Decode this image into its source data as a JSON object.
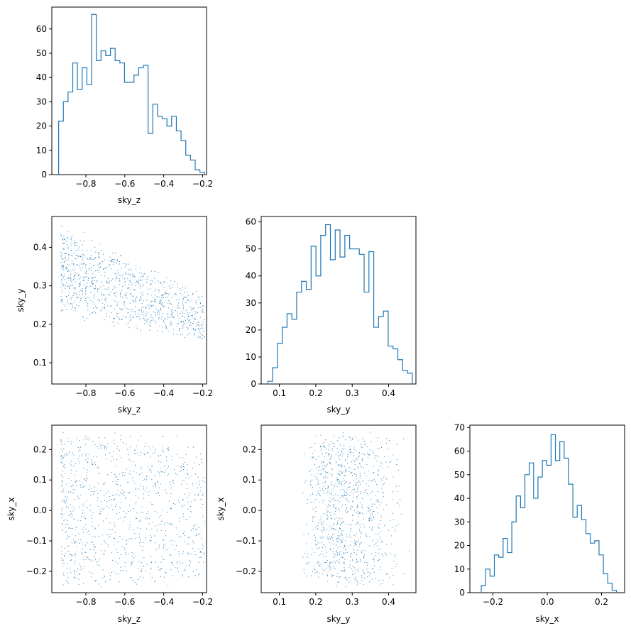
{
  "chart_data": [
    {
      "id": "hist-sky_z",
      "type": "histogram",
      "xlabel": "sky_z",
      "ylabel": "",
      "xlim": [
        -0.975,
        -0.18
      ],
      "ylim": [
        0,
        69
      ],
      "xticks": [
        -0.8,
        -0.6,
        -0.4,
        -0.2
      ],
      "xtick_labels": [
        "−0.8",
        "−0.6",
        "−0.4",
        "−0.2"
      ],
      "yticks": [
        0,
        10,
        20,
        30,
        40,
        50,
        60
      ],
      "ytick_labels": [
        "0",
        "10",
        "20",
        "30",
        "40",
        "50",
        "60"
      ],
      "bin_range": [
        -0.94,
        -0.19
      ],
      "counts": [
        22,
        30,
        34,
        46,
        35,
        44,
        37,
        66,
        47,
        51,
        49,
        52,
        47,
        46,
        38,
        38,
        41,
        44,
        45,
        17,
        29,
        24,
        23,
        20,
        24,
        18,
        14,
        8,
        6,
        2,
        1
      ],
      "color": "#1f77b4"
    },
    {
      "id": "scatter-sky_z-sky_y",
      "type": "scatter",
      "xlabel": "sky_z",
      "ylabel": "sky_y",
      "xlim": [
        -0.975,
        -0.18
      ],
      "ylim": [
        0.045,
        0.48
      ],
      "xticks": [
        -0.8,
        -0.6,
        -0.4,
        -0.2
      ],
      "xtick_labels": [
        "−0.8",
        "−0.6",
        "−0.4",
        "−0.2"
      ],
      "yticks": [
        0.1,
        0.2,
        0.3,
        0.4
      ],
      "ytick_labels": [
        "0.1",
        "0.2",
        "0.3",
        "0.4"
      ],
      "n_points": 1000,
      "color": "#1f77b4"
    },
    {
      "id": "hist-sky_y",
      "type": "histogram",
      "xlabel": "sky_y",
      "ylabel": "",
      "xlim": [
        0.05,
        0.475
      ],
      "ylim": [
        0,
        62
      ],
      "xticks": [
        0.1,
        0.2,
        0.3,
        0.4
      ],
      "xtick_labels": [
        "0.1",
        "0.2",
        "0.3",
        "0.4"
      ],
      "yticks": [
        0,
        10,
        20,
        30,
        40,
        50,
        60
      ],
      "ytick_labels": [
        "0",
        "10",
        "20",
        "30",
        "40",
        "50",
        "60"
      ],
      "bin_range": [
        0.068,
        0.465
      ],
      "counts": [
        1,
        6,
        15,
        21,
        26,
        24,
        34,
        38,
        35,
        51,
        40,
        55,
        59,
        46,
        57,
        47,
        55,
        50,
        50,
        48,
        34,
        49,
        21,
        25,
        27,
        14,
        13,
        9,
        5,
        4
      ],
      "color": "#1f77b4"
    },
    {
      "id": "scatter-sky_z-sky_x",
      "type": "scatter",
      "xlabel": "sky_z",
      "ylabel": "sky_x",
      "xlim": [
        -0.975,
        -0.18
      ],
      "ylim": [
        -0.27,
        0.28
      ],
      "xticks": [
        -0.8,
        -0.6,
        -0.4,
        -0.2
      ],
      "xtick_labels": [
        "−0.8",
        "−0.6",
        "−0.4",
        "−0.2"
      ],
      "yticks": [
        -0.2,
        -0.1,
        0.0,
        0.1,
        0.2
      ],
      "ytick_labels": [
        "−0.2",
        "−0.1",
        "0.0",
        "0.1",
        "0.2"
      ],
      "n_points": 1000,
      "color": "#1f77b4"
    },
    {
      "id": "scatter-sky_y-sky_x",
      "type": "scatter",
      "xlabel": "sky_y",
      "ylabel": "sky_x",
      "xlim": [
        0.05,
        0.475
      ],
      "ylim": [
        -0.27,
        0.28
      ],
      "xticks": [
        0.1,
        0.2,
        0.3,
        0.4
      ],
      "xtick_labels": [
        "0.1",
        "0.2",
        "0.3",
        "0.4"
      ],
      "yticks": [
        -0.2,
        -0.1,
        0.0,
        0.1,
        0.2
      ],
      "ytick_labels": [
        "−0.2",
        "−0.1",
        "0.0",
        "0.1",
        "0.2"
      ],
      "n_points": 1000,
      "color": "#1f77b4"
    },
    {
      "id": "hist-sky_x",
      "type": "histogram",
      "xlabel": "sky_x",
      "ylabel": "",
      "xlim": [
        -0.285,
        0.285
      ],
      "ylim": [
        0,
        71
      ],
      "xticks": [
        -0.2,
        0.0,
        0.2
      ],
      "xtick_labels": [
        "−0.2",
        "0.0",
        "0.2"
      ],
      "yticks": [
        0,
        10,
        20,
        30,
        40,
        50,
        60,
        70
      ],
      "ytick_labels": [
        "0",
        "10",
        "20",
        "30",
        "40",
        "50",
        "60",
        "70"
      ],
      "bin_range": [
        -0.243,
        0.255
      ],
      "counts": [
        3,
        10,
        7,
        16,
        15,
        23,
        17,
        30,
        41,
        36,
        50,
        55,
        40,
        49,
        56,
        54,
        67,
        56,
        64,
        57,
        46,
        32,
        37,
        31,
        25,
        21,
        22,
        16,
        8,
        4,
        1
      ],
      "color": "#1f77b4"
    }
  ]
}
